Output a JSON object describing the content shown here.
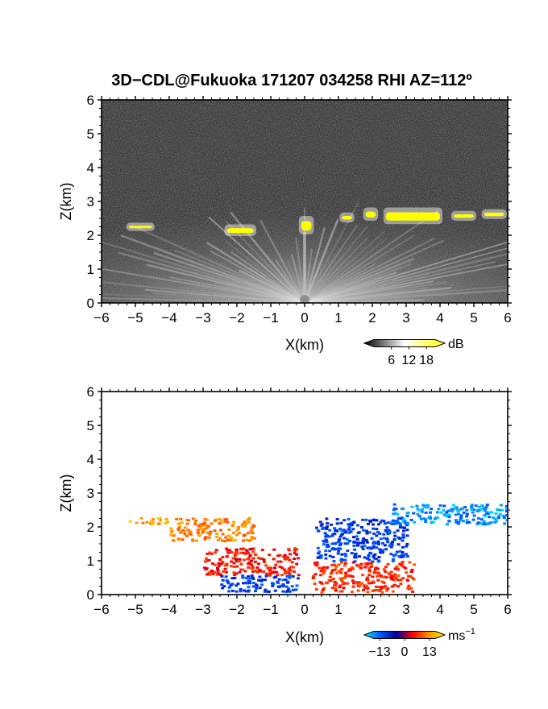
{
  "title": "3D−CDL@Fukuoka 171207 034258 RHI AZ=112º",
  "chart_data": [
    {
      "type": "heatmap",
      "name": "top panel: signal intensity",
      "xlabel": "X(km)",
      "ylabel": "Z(km)",
      "xlim": [
        -6,
        6
      ],
      "ylim": [
        0,
        6
      ],
      "x_ticks": [
        -6,
        -5,
        -4,
        -3,
        -2,
        -1,
        0,
        1,
        2,
        3,
        4,
        5,
        6
      ],
      "y_ticks": [
        0,
        1,
        2,
        3,
        4,
        5,
        6
      ],
      "colorbar": {
        "unit": "dB",
        "ticks": [
          6,
          12,
          18
        ],
        "range": [
          0,
          21
        ],
        "colors": [
          "#000000",
          "#ffffff",
          "#ffff00"
        ]
      },
      "cloud_base_segments": [
        {
          "x": [
            -5.2,
            -4.5
          ],
          "z": [
            2.2,
            2.3
          ]
        },
        {
          "x": [
            -2.3,
            -1.5
          ],
          "z": [
            2.05,
            2.25
          ]
        },
        {
          "x": [
            -0.1,
            0.2
          ],
          "z": [
            2.1,
            2.5
          ]
        },
        {
          "x": [
            1.1,
            1.4
          ],
          "z": [
            2.45,
            2.6
          ]
        },
        {
          "x": [
            1.8,
            2.1
          ],
          "z": [
            2.5,
            2.75
          ]
        },
        {
          "x": [
            2.4,
            4.0
          ],
          "z": [
            2.4,
            2.75
          ]
        },
        {
          "x": [
            4.4,
            5.0
          ],
          "z": [
            2.5,
            2.65
          ]
        },
        {
          "x": [
            5.3,
            5.9
          ],
          "z": [
            2.55,
            2.7
          ]
        }
      ]
    },
    {
      "type": "heatmap",
      "name": "bottom panel: radial velocity",
      "xlabel": "X(km)",
      "ylabel": "Z(km)",
      "xlim": [
        -6,
        6
      ],
      "ylim": [
        0,
        6
      ],
      "x_ticks": [
        -6,
        -5,
        -4,
        -3,
        -2,
        -1,
        0,
        1,
        2,
        3,
        4,
        5,
        6
      ],
      "y_ticks": [
        0,
        1,
        2,
        3,
        4,
        5,
        6
      ],
      "colorbar": {
        "unit": "ms",
        "unit_exp": "−1",
        "ticks": [
          "−13",
          "0",
          "13"
        ],
        "range": [
          -16,
          16
        ],
        "colors": [
          "#00ffff",
          "#0050ff",
          "#0000a0",
          "#ff0000",
          "#ff8c00",
          "#ffff00"
        ]
      },
      "regions": [
        {
          "x": [
            -5.2,
            -4.0
          ],
          "z": [
            2.1,
            2.3
          ],
          "velocity": 11
        },
        {
          "x": [
            -4.0,
            -1.5
          ],
          "z": [
            1.6,
            2.3
          ],
          "velocity": 9
        },
        {
          "x": [
            -3.0,
            -0.2
          ],
          "z": [
            0.6,
            1.4
          ],
          "velocity": 4
        },
        {
          "x": [
            -2.5,
            -0.2
          ],
          "z": [
            0.1,
            0.6
          ],
          "velocity": -8
        },
        {
          "x": [
            0.2,
            3.2
          ],
          "z": [
            0.1,
            1.0
          ],
          "velocity": 5
        },
        {
          "x": [
            0.3,
            3.0
          ],
          "z": [
            1.0,
            2.3
          ],
          "velocity": -8
        },
        {
          "x": [
            2.5,
            6.0
          ],
          "z": [
            2.1,
            2.7
          ],
          "velocity": -12
        }
      ]
    }
  ]
}
